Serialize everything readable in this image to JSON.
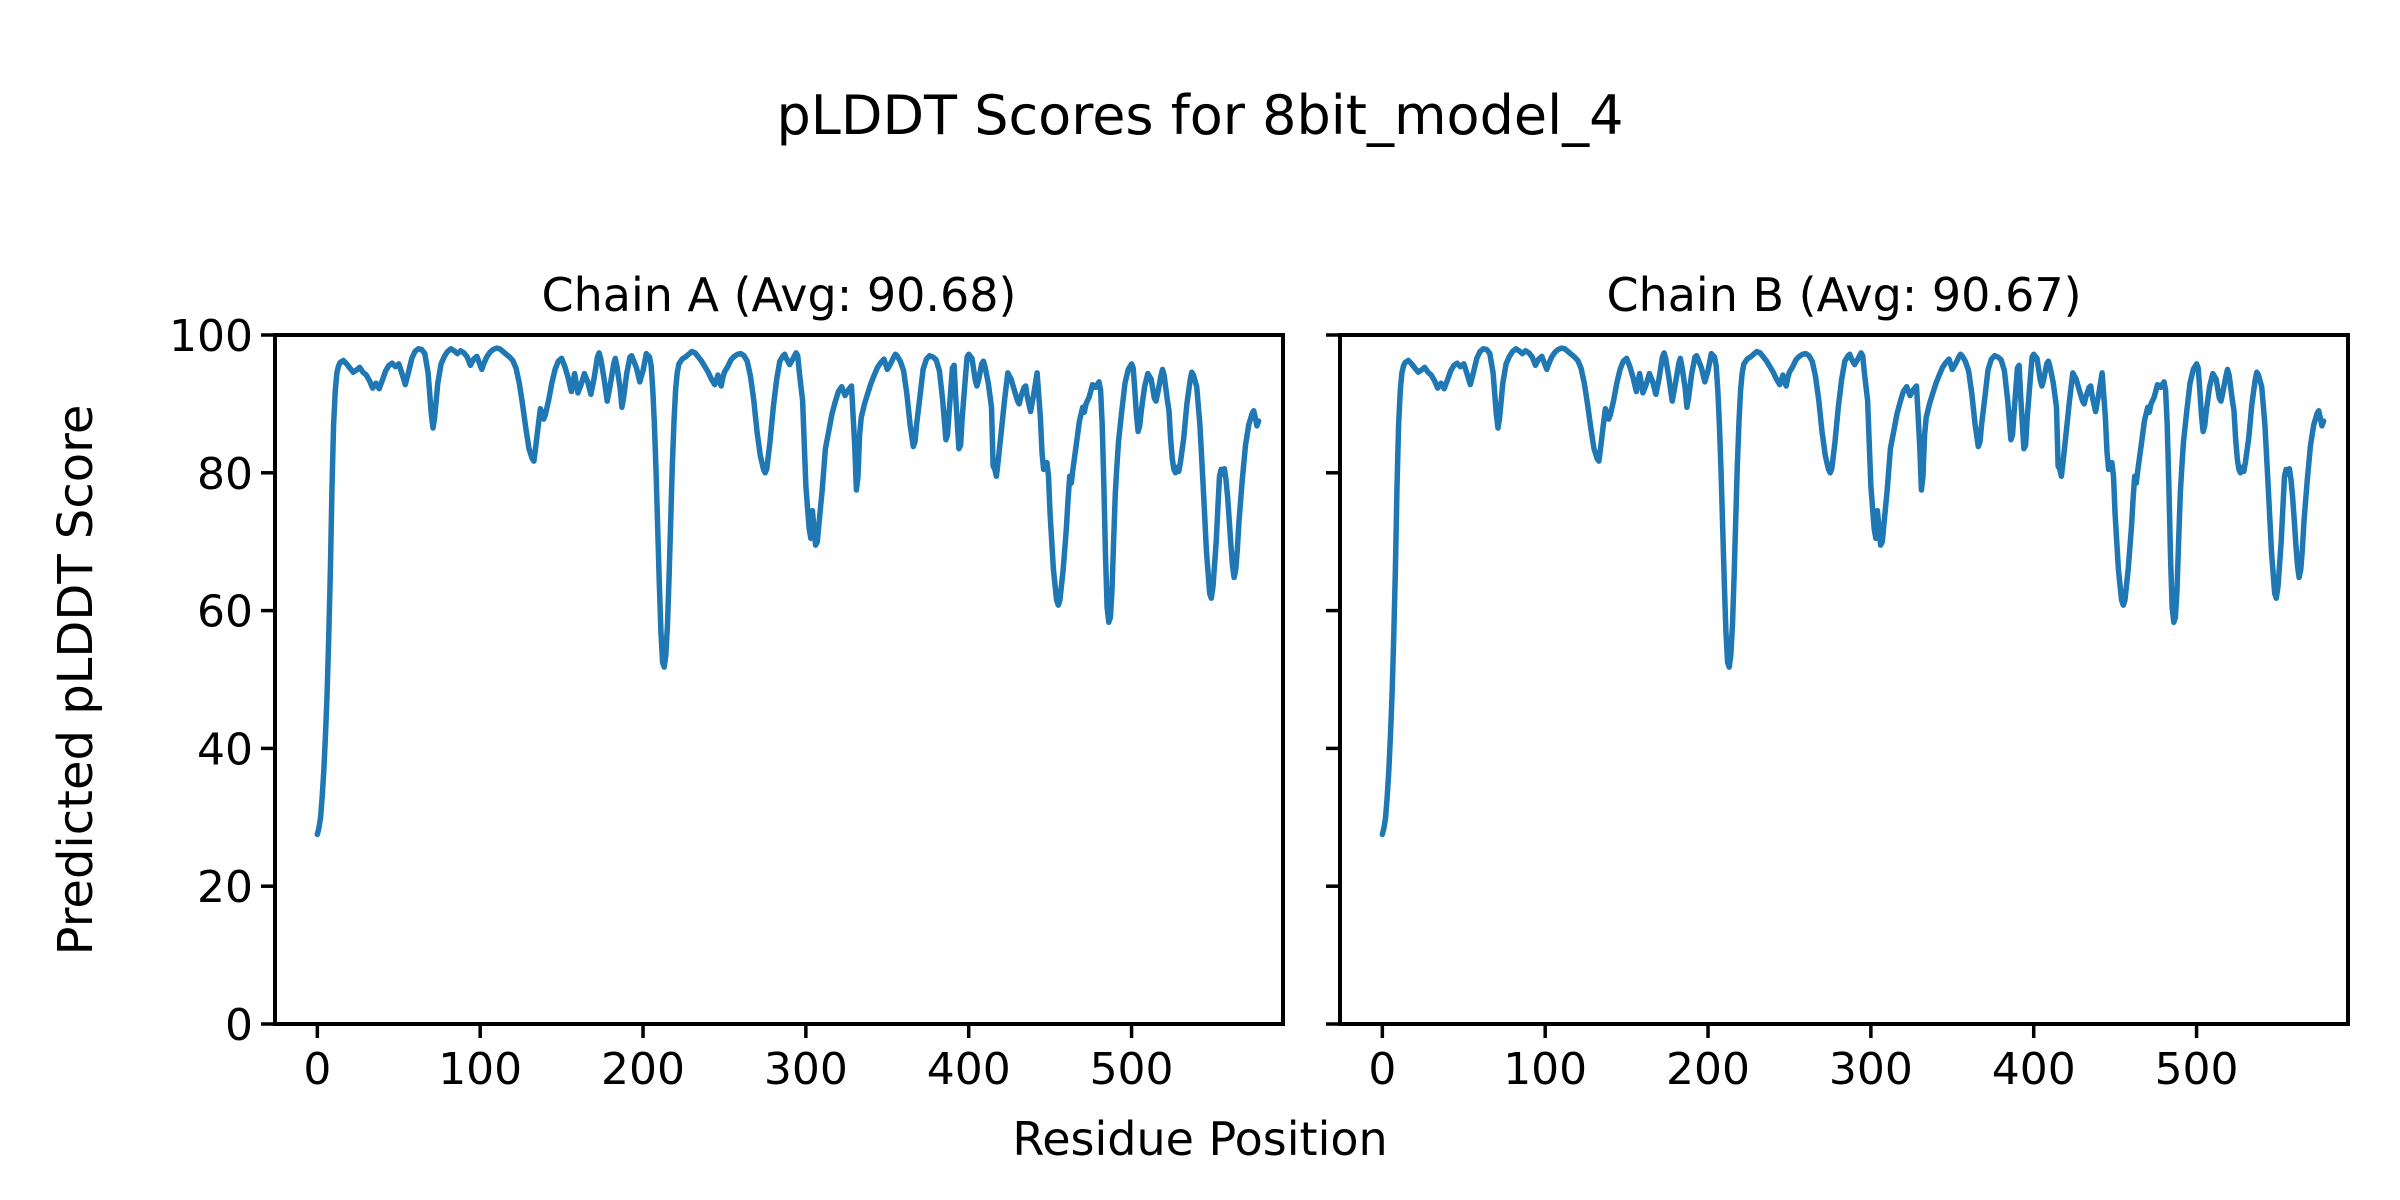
{
  "chart_data": {
    "type": "line",
    "suptitle": "pLDDT Scores for 8bit_model_4",
    "xlabel": "Residue Position",
    "ylabel": "Predicted pLDDT Score",
    "xlim": [
      -26,
      593
    ],
    "ylim": [
      0,
      100
    ],
    "xticks": [
      0,
      100,
      200,
      300,
      400,
      500
    ],
    "yticks": [
      0,
      20,
      40,
      60,
      80,
      100
    ],
    "grid": false,
    "legend": "none",
    "line_color": "#1f77b4",
    "axis_color": "#000000",
    "background_color": "#ffffff",
    "subplots": [
      {
        "title": "Chain A (Avg: 90.68)",
        "chain": "A",
        "avg": 90.68
      },
      {
        "title": "Chain B (Avg: 90.67)",
        "chain": "B",
        "avg": 90.67
      }
    ],
    "note": "Both chains show visually identical pLDDT profiles; shared points below as [residue, plddt]",
    "points": [
      [
        0,
        27.5
      ],
      [
        1,
        28.5
      ],
      [
        2,
        30
      ],
      [
        3,
        33
      ],
      [
        4,
        37
      ],
      [
        5,
        42
      ],
      [
        6,
        48
      ],
      [
        7,
        56
      ],
      [
        8,
        66
      ],
      [
        9,
        78
      ],
      [
        10,
        87
      ],
      [
        11,
        92
      ],
      [
        12,
        94.5
      ],
      [
        13,
        95.5
      ],
      [
        14,
        96
      ],
      [
        16,
        96.3
      ],
      [
        18,
        95.8
      ],
      [
        20,
        95.2
      ],
      [
        22,
        94.6
      ],
      [
        24,
        94.9
      ],
      [
        26,
        95.3
      ],
      [
        28,
        94.6
      ],
      [
        30,
        94.2
      ],
      [
        32,
        93.4
      ],
      [
        34,
        92.3
      ],
      [
        36,
        93
      ],
      [
        38,
        92.2
      ],
      [
        40,
        93.5
      ],
      [
        42,
        94.8
      ],
      [
        44,
        95.6
      ],
      [
        46,
        95.9
      ],
      [
        48,
        95.4
      ],
      [
        50,
        95.8
      ],
      [
        52,
        94.4
      ],
      [
        54,
        92.8
      ],
      [
        56,
        94.6
      ],
      [
        58,
        96.6
      ],
      [
        60,
        97.6
      ],
      [
        62,
        98
      ],
      [
        64,
        97.9
      ],
      [
        66,
        97.3
      ],
      [
        68,
        94.5
      ],
      [
        70,
        88.5
      ],
      [
        71,
        86.5
      ],
      [
        72,
        88
      ],
      [
        74,
        93
      ],
      [
        76,
        95.8
      ],
      [
        78,
        96.9
      ],
      [
        80,
        97.6
      ],
      [
        82,
        98
      ],
      [
        84,
        97.7
      ],
      [
        86,
        97.3
      ],
      [
        88,
        97.7
      ],
      [
        90,
        97.4
      ],
      [
        92,
        96.8
      ],
      [
        94,
        95.6
      ],
      [
        96,
        96.5
      ],
      [
        98,
        96.9
      ],
      [
        100,
        95.6
      ],
      [
        101,
        95
      ],
      [
        102,
        95.7
      ],
      [
        104,
        96.8
      ],
      [
        106,
        97.5
      ],
      [
        108,
        97.9
      ],
      [
        110,
        98.1
      ],
      [
        112,
        98
      ],
      [
        114,
        97.6
      ],
      [
        116,
        97.2
      ],
      [
        118,
        96.8
      ],
      [
        120,
        96.3
      ],
      [
        122,
        95.2
      ],
      [
        124,
        93
      ],
      [
        126,
        90
      ],
      [
        128,
        86.5
      ],
      [
        130,
        83.5
      ],
      [
        132,
        82
      ],
      [
        133,
        81.7
      ],
      [
        134,
        83.5
      ],
      [
        136,
        87.5
      ],
      [
        137,
        89.3
      ],
      [
        138,
        88.6
      ],
      [
        139,
        87.8
      ],
      [
        140,
        88.4
      ],
      [
        142,
        90.5
      ],
      [
        144,
        93
      ],
      [
        146,
        95
      ],
      [
        148,
        96.2
      ],
      [
        150,
        96.6
      ],
      [
        152,
        95.4
      ],
      [
        154,
        93.8
      ],
      [
        155,
        92.8
      ],
      [
        156,
        91.8
      ],
      [
        157,
        93.2
      ],
      [
        158,
        94.4
      ],
      [
        159,
        93
      ],
      [
        160,
        91.6
      ],
      [
        162,
        92.8
      ],
      [
        164,
        94.4
      ],
      [
        166,
        93.2
      ],
      [
        168,
        91.4
      ],
      [
        170,
        93.8
      ],
      [
        172,
        96.8
      ],
      [
        173,
        97.4
      ],
      [
        174,
        96.6
      ],
      [
        176,
        93.8
      ],
      [
        178,
        90.4
      ],
      [
        180,
        93
      ],
      [
        182,
        95.8
      ],
      [
        183,
        96.6
      ],
      [
        184,
        95.4
      ],
      [
        186,
        92.2
      ],
      [
        187,
        89.5
      ],
      [
        188,
        90.8
      ],
      [
        190,
        94.4
      ],
      [
        192,
        96.8
      ],
      [
        193,
        97
      ],
      [
        194,
        96.4
      ],
      [
        196,
        95.2
      ],
      [
        198,
        93.2
      ],
      [
        200,
        94.8
      ],
      [
        202,
        97.3
      ],
      [
        204,
        96.8
      ],
      [
        205,
        95.5
      ],
      [
        206,
        92
      ],
      [
        207,
        87
      ],
      [
        208,
        80
      ],
      [
        209,
        72
      ],
      [
        210,
        64
      ],
      [
        211,
        57
      ],
      [
        212,
        52.5
      ],
      [
        213,
        51.8
      ],
      [
        214,
        53.5
      ],
      [
        215,
        58
      ],
      [
        216,
        65
      ],
      [
        217,
        73
      ],
      [
        218,
        81
      ],
      [
        219,
        87.5
      ],
      [
        220,
        92
      ],
      [
        221,
        94.5
      ],
      [
        222,
        95.8
      ],
      [
        224,
        96.5
      ],
      [
        226,
        96.8
      ],
      [
        228,
        97.2
      ],
      [
        230,
        97.6
      ],
      [
        232,
        97.4
      ],
      [
        234,
        96.8
      ],
      [
        236,
        96.2
      ],
      [
        238,
        95.4
      ],
      [
        240,
        94.6
      ],
      [
        242,
        93.6
      ],
      [
        244,
        92.8
      ],
      [
        245,
        93.4
      ],
      [
        246,
        94.2
      ],
      [
        247,
        93.2
      ],
      [
        248,
        92.6
      ],
      [
        249,
        93.8
      ],
      [
        250,
        94.6
      ],
      [
        252,
        95.4
      ],
      [
        254,
        96.4
      ],
      [
        256,
        96.9
      ],
      [
        258,
        97.2
      ],
      [
        260,
        97.3
      ],
      [
        262,
        97
      ],
      [
        264,
        96.2
      ],
      [
        266,
        94
      ],
      [
        268,
        90.5
      ],
      [
        270,
        86
      ],
      [
        272,
        82.5
      ],
      [
        274,
        80.5
      ],
      [
        275,
        80
      ],
      [
        276,
        80.6
      ],
      [
        278,
        84.5
      ],
      [
        280,
        89.5
      ],
      [
        282,
        93.5
      ],
      [
        284,
        96.2
      ],
      [
        286,
        97
      ],
      [
        287,
        97.2
      ],
      [
        288,
        96.6
      ],
      [
        290,
        95.7
      ],
      [
        292,
        96.5
      ],
      [
        294,
        97.4
      ],
      [
        295,
        97
      ],
      [
        296,
        94.5
      ],
      [
        298,
        90.5
      ],
      [
        300,
        78
      ],
      [
        302,
        72
      ],
      [
        303,
        70.5
      ],
      [
        304,
        74.5
      ],
      [
        306,
        69.5
      ],
      [
        307,
        70
      ],
      [
        308,
        72.5
      ],
      [
        310,
        77.5
      ],
      [
        312,
        83.5
      ],
      [
        314,
        86
      ],
      [
        316,
        88.5
      ],
      [
        318,
        90.3
      ],
      [
        320,
        91.8
      ],
      [
        322,
        92.5
      ],
      [
        324,
        91.2
      ],
      [
        326,
        92
      ],
      [
        328,
        92.6
      ],
      [
        330,
        84
      ],
      [
        331,
        77.5
      ],
      [
        332,
        79.5
      ],
      [
        333,
        85.5
      ],
      [
        334,
        88
      ],
      [
        336,
        90
      ],
      [
        338,
        91.5
      ],
      [
        340,
        93
      ],
      [
        342,
        94.2
      ],
      [
        344,
        95.3
      ],
      [
        346,
        96
      ],
      [
        348,
        96.5
      ],
      [
        350,
        95
      ],
      [
        352,
        95.8
      ],
      [
        354,
        96.8
      ],
      [
        355,
        97.2
      ],
      [
        356,
        97
      ],
      [
        358,
        96.2
      ],
      [
        360,
        94.8
      ],
      [
        362,
        91.5
      ],
      [
        364,
        87
      ],
      [
        366,
        83.8
      ],
      [
        367,
        84.5
      ],
      [
        368,
        87
      ],
      [
        370,
        91
      ],
      [
        372,
        95
      ],
      [
        374,
        96.5
      ],
      [
        376,
        97
      ],
      [
        378,
        96.8
      ],
      [
        380,
        96.4
      ],
      [
        382,
        94.8
      ],
      [
        384,
        90.5
      ],
      [
        386,
        84.8
      ],
      [
        387,
        85.5
      ],
      [
        388,
        89
      ],
      [
        390,
        95.2
      ],
      [
        391,
        95.6
      ],
      [
        392,
        91
      ],
      [
        394,
        83.5
      ],
      [
        395,
        84
      ],
      [
        396,
        88
      ],
      [
        398,
        94
      ],
      [
        399,
        96.8
      ],
      [
        400,
        97.2
      ],
      [
        402,
        96.6
      ],
      [
        404,
        93.5
      ],
      [
        405,
        92.6
      ],
      [
        406,
        93.4
      ],
      [
        408,
        95.8
      ],
      [
        409,
        96.2
      ],
      [
        410,
        95.4
      ],
      [
        412,
        93
      ],
      [
        414,
        89.5
      ],
      [
        415,
        81
      ],
      [
        416,
        80.5
      ],
      [
        417,
        79.5
      ],
      [
        418,
        81.5
      ],
      [
        420,
        86
      ],
      [
        422,
        90.5
      ],
      [
        424,
        94.5
      ],
      [
        426,
        93.6
      ],
      [
        428,
        92
      ],
      [
        430,
        90.4
      ],
      [
        431,
        90
      ],
      [
        432,
        91
      ],
      [
        434,
        92.4
      ],
      [
        435,
        92.6
      ],
      [
        436,
        91
      ],
      [
        438,
        88.9
      ],
      [
        440,
        91.5
      ],
      [
        442,
        94.5
      ],
      [
        444,
        88
      ],
      [
        445,
        83
      ],
      [
        446,
        80.5
      ],
      [
        447,
        80.9
      ],
      [
        448,
        81.5
      ],
      [
        449,
        79.5
      ],
      [
        450,
        74
      ],
      [
        452,
        66
      ],
      [
        454,
        61.5
      ],
      [
        455,
        60.8
      ],
      [
        456,
        61.5
      ],
      [
        458,
        66
      ],
      [
        460,
        72
      ],
      [
        461,
        76
      ],
      [
        462,
        79.5
      ],
      [
        463,
        78.5
      ],
      [
        464,
        80.5
      ],
      [
        466,
        84
      ],
      [
        468,
        87.5
      ],
      [
        470,
        89.5
      ],
      [
        471,
        88.8
      ],
      [
        472,
        90
      ],
      [
        474,
        91
      ],
      [
        476,
        92.8
      ],
      [
        478,
        92.4
      ],
      [
        480,
        93.2
      ],
      [
        481,
        92
      ],
      [
        482,
        87
      ],
      [
        483,
        78
      ],
      [
        484,
        68
      ],
      [
        485,
        60.5
      ],
      [
        486,
        58.3
      ],
      [
        487,
        59
      ],
      [
        488,
        63
      ],
      [
        489,
        70
      ],
      [
        490,
        77
      ],
      [
        491,
        81
      ],
      [
        492,
        84.5
      ],
      [
        494,
        89
      ],
      [
        496,
        93
      ],
      [
        498,
        95
      ],
      [
        500,
        95.8
      ],
      [
        501,
        95.2
      ],
      [
        502,
        92
      ],
      [
        503,
        88.5
      ],
      [
        504,
        86
      ],
      [
        505,
        86.8
      ],
      [
        506,
        89
      ],
      [
        508,
        92.5
      ],
      [
        510,
        94.4
      ],
      [
        512,
        93.6
      ],
      [
        514,
        90.8
      ],
      [
        515,
        90.4
      ],
      [
        516,
        91.5
      ],
      [
        518,
        94
      ],
      [
        519,
        95
      ],
      [
        520,
        94.2
      ],
      [
        522,
        90.5
      ],
      [
        523,
        89
      ],
      [
        524,
        85
      ],
      [
        525,
        82
      ],
      [
        526,
        80.5
      ],
      [
        527,
        80
      ],
      [
        528,
        80.8
      ],
      [
        529,
        80.2
      ],
      [
        530,
        81.5
      ],
      [
        532,
        85
      ],
      [
        534,
        90
      ],
      [
        536,
        93.5
      ],
      [
        537,
        94.6
      ],
      [
        538,
        94.2
      ],
      [
        540,
        92.5
      ],
      [
        542,
        87
      ],
      [
        544,
        78
      ],
      [
        546,
        68.5
      ],
      [
        548,
        62.5
      ],
      [
        549,
        61.8
      ],
      [
        550,
        63.5
      ],
      [
        552,
        70
      ],
      [
        553,
        75
      ],
      [
        554,
        79.5
      ],
      [
        555,
        80.5
      ],
      [
        556,
        79.8
      ],
      [
        557,
        80.6
      ],
      [
        558,
        79
      ],
      [
        559,
        76.5
      ],
      [
        560,
        73
      ],
      [
        561,
        69.5
      ],
      [
        562,
        66.5
      ],
      [
        563,
        64.8
      ],
      [
        564,
        66
      ],
      [
        565,
        69
      ],
      [
        566,
        73
      ],
      [
        568,
        79
      ],
      [
        570,
        84
      ],
      [
        572,
        87
      ],
      [
        574,
        88.6
      ],
      [
        575,
        89
      ],
      [
        576,
        88
      ],
      [
        577,
        86.8
      ],
      [
        578,
        87.5
      ]
    ]
  }
}
